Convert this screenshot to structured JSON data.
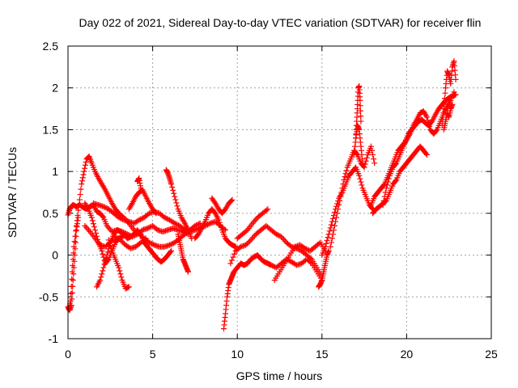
{
  "chart_data": {
    "type": "scatter",
    "title": "Day 022 of 2021, Sidereal Day-to-day VTEC variation (SDTVAR) for receiver flin",
    "xlabel": "GPS time / hours",
    "ylabel": "SDTVAR / TECUs",
    "xlim": [
      0,
      25
    ],
    "ylim": [
      -1,
      2.5
    ],
    "x_ticks": [
      0,
      5,
      10,
      15,
      20,
      25
    ],
    "x_tick_labels": [
      "0",
      "5",
      "10",
      "15",
      "20",
      "25"
    ],
    "y_ticks": [
      -1,
      -0.5,
      0,
      0.5,
      1,
      1.5,
      2,
      2.5
    ],
    "y_tick_labels": [
      "-1",
      "-0.5",
      "0",
      "0.5",
      "1",
      "1.5",
      "2",
      "2.5"
    ],
    "grid": true,
    "marker": "plus",
    "colors": {
      "series": "#ff0000",
      "grid": "#a0a0a0",
      "axis": "#000000",
      "background": "#ffffff"
    },
    "series": [
      {
        "tracks": [
          {
            "x": [
              0.0,
              0.1,
              0.2,
              0.3,
              0.5,
              0.7,
              0.9,
              1.1,
              1.3,
              1.5,
              1.7,
              1.9,
              2.1,
              2.3,
              2.6,
              2.9,
              3.2,
              3.5,
              3.8,
              4.1,
              4.4,
              4.7,
              5.0,
              5.3,
              5.6,
              5.9,
              6.2,
              6.5,
              6.8,
              7.1
            ],
            "y": [
              0.48,
              0.55,
              0.58,
              0.6,
              0.58,
              0.6,
              0.57,
              0.55,
              0.58,
              0.6,
              0.52,
              0.5,
              0.45,
              0.35,
              0.28,
              0.3,
              0.28,
              0.25,
              0.22,
              0.25,
              0.3,
              0.32,
              0.35,
              0.3,
              0.28,
              0.3,
              0.32,
              0.3,
              0.28,
              0.25
            ]
          },
          {
            "x": [
              0.05,
              0.15,
              0.25,
              0.35,
              0.5,
              0.65,
              0.8,
              0.95,
              1.1,
              1.25,
              1.4,
              1.6,
              1.8,
              2.0,
              2.2,
              2.4,
              2.6,
              2.8,
              3.0,
              3.3,
              3.6,
              3.9,
              4.2,
              4.5,
              4.8,
              5.1,
              5.4,
              5.7,
              6.0,
              6.3,
              6.6,
              6.9,
              7.2,
              7.5,
              7.8
            ],
            "y": [
              -0.65,
              -0.55,
              -0.2,
              0.1,
              0.35,
              0.6,
              0.85,
              1.0,
              1.15,
              1.18,
              1.1,
              1.0,
              0.92,
              0.85,
              0.78,
              0.7,
              0.62,
              0.55,
              0.5,
              0.45,
              0.38,
              0.3,
              0.25,
              0.2,
              0.15,
              0.12,
              0.1,
              0.1,
              0.12,
              0.15,
              0.2,
              0.25,
              0.3,
              0.35,
              0.38
            ]
          },
          {
            "x": [
              0.0,
              0.1,
              0.2,
              0.3,
              0.4,
              0.5,
              0.6
            ],
            "y": [
              -0.62,
              -0.66,
              -0.6,
              -0.3,
              0.0,
              0.3,
              0.45
            ]
          },
          {
            "x": [
              1.7,
              1.9,
              2.1,
              2.3,
              2.5,
              2.7,
              2.9,
              3.1,
              3.3,
              3.5,
              3.7,
              3.9,
              4.1,
              4.3,
              4.5,
              4.7,
              4.9,
              5.1,
              5.3,
              5.5,
              5.7,
              5.9,
              6.1
            ],
            "y": [
              -0.38,
              -0.3,
              -0.15,
              0.0,
              0.15,
              0.25,
              0.3,
              0.28,
              0.25,
              0.2,
              0.22,
              0.25,
              0.3,
              0.25,
              0.15,
              0.1,
              0.05,
              0.0,
              -0.05,
              -0.08,
              -0.05,
              0.0,
              0.05
            ]
          },
          {
            "x": [
              1.0,
              1.3,
              1.6,
              1.9,
              2.2,
              2.5,
              2.8,
              3.1,
              3.4,
              3.7,
              4.0,
              4.3,
              4.6
            ],
            "y": [
              0.35,
              0.28,
              0.2,
              0.12,
              0.1,
              0.15,
              0.22,
              0.18,
              0.12,
              0.08,
              0.1,
              0.15,
              0.2
            ]
          },
          {
            "x": [
              1.0,
              1.2,
              1.4,
              1.6,
              1.8,
              2.0,
              2.2,
              2.4,
              2.6,
              2.8,
              3.0,
              3.2,
              3.4
            ],
            "y": [
              0.62,
              0.55,
              0.45,
              0.3,
              0.15,
              0.05,
              -0.1,
              -0.05,
              0.05,
              0.15,
              0.2,
              0.22,
              0.25
            ]
          },
          {
            "x": [
              1.5,
              1.8,
              2.1,
              2.4,
              2.7,
              3.0,
              3.3,
              3.6,
              3.9,
              4.2,
              4.5,
              4.8,
              5.1,
              5.4,
              5.7,
              6.0,
              6.3,
              6.6,
              6.9,
              7.2,
              7.5,
              7.8,
              8.1,
              8.4,
              8.7,
              9.0,
              9.3
            ],
            "y": [
              0.62,
              0.6,
              0.58,
              0.55,
              0.5,
              0.45,
              0.42,
              0.4,
              0.38,
              0.42,
              0.45,
              0.5,
              0.52,
              0.5,
              0.45,
              0.42,
              0.38,
              0.35,
              0.3,
              0.28,
              0.3,
              0.33,
              0.35,
              0.38,
              0.4,
              0.35,
              0.3
            ]
          },
          {
            "x": [
              2.4,
              2.6,
              2.8,
              3.0,
              3.2,
              3.4,
              3.6
            ],
            "y": [
              0.18,
              0.05,
              -0.05,
              -0.15,
              -0.3,
              -0.4,
              -0.38
            ]
          },
          {
            "x": [
              3.6,
              3.8,
              4.0,
              4.2,
              4.4,
              4.6,
              4.8,
              5.0,
              5.2
            ],
            "y": [
              0.55,
              0.62,
              0.7,
              0.75,
              0.78,
              0.7,
              0.62,
              0.55,
              0.5
            ]
          },
          {
            "x": [
              4.1,
              4.2,
              4.3
            ],
            "y": [
              0.88,
              0.92,
              0.8
            ]
          },
          {
            "x": [
              5.8,
              5.9,
              6.0,
              6.1,
              6.3,
              6.5,
              6.7,
              6.9,
              7.1,
              7.3
            ],
            "y": [
              1.02,
              0.98,
              0.92,
              0.85,
              0.7,
              0.55,
              0.45,
              0.38,
              0.3,
              0.2
            ]
          },
          {
            "x": [
              6.5,
              6.6,
              6.7,
              6.8,
              6.9,
              7.0,
              7.1
            ],
            "y": [
              0.25,
              0.15,
              0.05,
              -0.05,
              -0.1,
              -0.15,
              -0.2
            ]
          },
          {
            "x": [
              7.5,
              7.7,
              7.9,
              8.1,
              8.3,
              8.5,
              8.7,
              8.9,
              9.1,
              9.3,
              9.5,
              9.7,
              9.9
            ],
            "y": [
              0.2,
              0.25,
              0.32,
              0.4,
              0.5,
              0.55,
              0.5,
              0.42,
              0.3,
              0.2,
              0.15,
              0.12,
              0.1
            ]
          },
          {
            "x": [
              8.5,
              8.7,
              8.9,
              9.1,
              9.3,
              9.5,
              9.7
            ],
            "y": [
              0.68,
              0.62,
              0.55,
              0.5,
              0.55,
              0.62,
              0.66
            ]
          },
          {
            "x": [
              9.2,
              9.3,
              9.4,
              9.5,
              9.6,
              9.7,
              9.8,
              10.0,
              10.2,
              10.4,
              10.6,
              10.8,
              11.0,
              11.2,
              11.4,
              11.6,
              11.8,
              12.0,
              12.3,
              12.6,
              12.9,
              13.2,
              13.5,
              13.8,
              14.1,
              14.4,
              14.7,
              15.0
            ],
            "y": [
              -0.88,
              -0.7,
              -0.5,
              -0.35,
              -0.3,
              -0.25,
              -0.2,
              -0.15,
              -0.1,
              -0.12,
              -0.1,
              -0.05,
              -0.02,
              0.0,
              -0.05,
              -0.08,
              -0.1,
              -0.12,
              -0.15,
              -0.1,
              -0.05,
              -0.08,
              -0.12,
              -0.1,
              -0.05,
              -0.1,
              -0.2,
              -0.3
            ]
          },
          {
            "x": [
              9.6,
              9.9,
              10.2,
              10.5,
              10.8,
              11.1,
              11.4,
              11.7,
              12.0,
              12.3,
              12.6,
              12.9,
              13.2,
              13.5,
              13.8,
              14.1,
              14.4,
              14.7,
              15.0
            ],
            "y": [
              -0.1,
              0.05,
              0.1,
              0.12,
              0.18,
              0.25,
              0.3,
              0.35,
              0.3,
              0.25,
              0.22,
              0.15,
              0.1,
              0.08,
              0.05,
              0.0,
              -0.05,
              -0.15,
              -0.25
            ]
          },
          {
            "x": [
              10.0,
              10.3,
              10.6,
              10.9,
              11.2,
              11.5,
              11.8
            ],
            "y": [
              0.2,
              0.25,
              0.3,
              0.38,
              0.45,
              0.5,
              0.55
            ]
          },
          {
            "x": [
              12.2,
              12.5,
              12.8,
              13.1,
              13.4,
              13.7,
              14.0,
              14.3,
              14.6,
              14.9,
              15.2
            ],
            "y": [
              -0.3,
              -0.2,
              -0.1,
              0.0,
              0.1,
              0.12,
              0.08,
              0.05,
              0.1,
              0.15,
              0.05
            ]
          },
          {
            "x": [
              14.8,
              14.9,
              15.0,
              15.1,
              15.2,
              15.3,
              15.4
            ],
            "y": [
              -0.38,
              -0.35,
              -0.3,
              -0.2,
              -0.1,
              0.0,
              0.05
            ]
          },
          {
            "x": [
              15.0,
              15.2,
              15.4,
              15.6,
              15.8,
              16.0,
              16.2,
              16.4,
              16.6,
              16.8,
              17.0,
              17.2,
              17.4,
              17.6,
              17.8,
              18.0
            ],
            "y": [
              0.0,
              0.1,
              0.25,
              0.4,
              0.55,
              0.68,
              0.75,
              0.85,
              0.95,
              1.0,
              1.05,
              0.95,
              0.8,
              0.7,
              0.6,
              0.55
            ]
          },
          {
            "x": [
              15.5,
              15.7,
              15.9,
              16.1,
              16.3,
              16.5,
              16.7,
              16.9,
              17.1,
              17.3,
              17.5,
              17.7,
              17.9,
              18.1
            ],
            "y": [
              0.1,
              0.3,
              0.5,
              0.7,
              0.9,
              1.05,
              1.15,
              1.25,
              1.2,
              1.1,
              1.05,
              1.2,
              1.3,
              1.1
            ]
          },
          {
            "x": [
              17.0,
              17.05,
              17.1,
              17.15,
              17.2,
              17.25,
              17.3
            ],
            "y": [
              1.4,
              1.6,
              1.8,
              2.0,
              2.02,
              1.85,
              1.6
            ]
          },
          {
            "x": [
              16.9,
              17.0,
              17.1,
              17.2,
              17.3,
              17.4
            ],
            "y": [
              1.2,
              1.4,
              1.55,
              1.5,
              1.3,
              1.1
            ]
          },
          {
            "x": [
              17.9,
              18.1,
              18.3,
              18.5,
              18.7,
              18.9,
              19.1,
              19.3,
              19.5,
              19.7,
              19.9,
              20.1,
              20.3,
              20.5,
              20.7,
              20.9,
              21.1,
              21.3,
              21.5,
              21.7,
              21.9,
              22.1,
              22.3,
              22.5,
              22.7,
              22.9
            ],
            "y": [
              0.6,
              0.7,
              0.75,
              0.8,
              0.85,
              0.95,
              1.05,
              1.15,
              1.25,
              1.3,
              1.35,
              1.45,
              1.5,
              1.55,
              1.6,
              1.62,
              1.58,
              1.55,
              1.6,
              1.68,
              1.75,
              1.8,
              1.85,
              1.88,
              1.9,
              1.92
            ]
          },
          {
            "x": [
              18.6,
              18.8,
              19.0,
              19.2,
              19.4,
              19.6,
              19.8,
              20.0,
              20.2,
              20.4,
              20.6,
              20.8,
              21.0,
              21.2,
              21.4,
              21.6,
              21.8,
              22.0,
              22.2,
              22.4,
              22.6,
              22.8
            ],
            "y": [
              0.6,
              0.8,
              0.95,
              1.05,
              1.1,
              1.2,
              1.3,
              1.38,
              1.45,
              1.55,
              1.62,
              1.7,
              1.72,
              1.65,
              1.5,
              1.45,
              1.5,
              1.6,
              1.7,
              1.78,
              1.85,
              1.95
            ]
          },
          {
            "x": [
              18.0,
              18.2,
              18.4,
              18.6,
              18.8,
              19.0,
              19.2,
              19.4,
              19.6,
              19.8,
              20.0,
              20.2,
              20.4,
              20.6,
              20.8,
              21.0,
              21.2
            ],
            "y": [
              0.5,
              0.55,
              0.58,
              0.62,
              0.65,
              0.75,
              0.85,
              0.9,
              1.0,
              1.05,
              1.1,
              1.15,
              1.2,
              1.25,
              1.3,
              1.25,
              1.2
            ]
          },
          {
            "x": [
              22.1,
              22.2,
              22.3,
              22.4,
              22.5,
              22.6,
              22.7,
              22.8,
              22.9
            ],
            "y": [
              1.55,
              1.75,
              2.0,
              2.2,
              2.15,
              2.05,
              2.25,
              2.32,
              2.1
            ]
          },
          {
            "x": [
              22.2,
              22.3,
              22.4,
              22.5,
              22.6,
              22.7
            ],
            "y": [
              1.5,
              1.6,
              1.7,
              1.65,
              1.75,
              1.8
            ]
          }
        ]
      }
    ]
  }
}
